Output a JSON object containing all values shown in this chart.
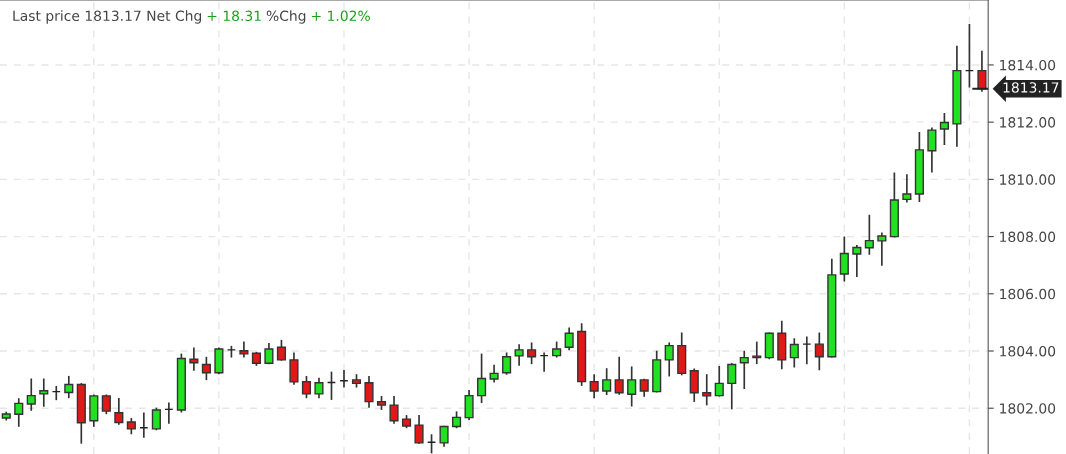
{
  "chart_data": {
    "type": "candlestick",
    "annotations": [
      "Last price 1813.17 Net Chg",
      "+ 18.31",
      "%Chg",
      "+ 1.02%"
    ],
    "categories": [
      null,
      null,
      null,
      null,
      null,
      null,
      null,
      null,
      null,
      null,
      null,
      null,
      null,
      null,
      null,
      null,
      null,
      null,
      null,
      null,
      null,
      null,
      null,
      null,
      null,
      null,
      null,
      null,
      null,
      null,
      null,
      null,
      null,
      null,
      null,
      null,
      null,
      null,
      null,
      null,
      null,
      null,
      null,
      null,
      null,
      null,
      null,
      null,
      null,
      null,
      null,
      null,
      null,
      null,
      null,
      null,
      null,
      null,
      null,
      null,
      null,
      null,
      null,
      null,
      null,
      null,
      null,
      null,
      null,
      null,
      null,
      null,
      null,
      null,
      null,
      null,
      null,
      null,
      null
    ],
    "ohlc": [
      [
        1801.66,
        1801.85,
        1801.6,
        1801.8
      ],
      [
        1801.79,
        1802.32,
        1801.38,
        1802.17
      ],
      [
        1802.15,
        1803.01,
        1801.94,
        1802.44
      ],
      [
        1802.5,
        1803.01,
        1802.08,
        1802.61
      ],
      [
        1802.58,
        1802.75,
        1802.31,
        1802.58
      ],
      [
        1802.55,
        1803.1,
        1802.38,
        1802.83
      ],
      [
        1802.83,
        1802.85,
        1800.79,
        1801.49
      ],
      [
        1801.56,
        1802.45,
        1801.38,
        1802.43
      ],
      [
        1802.43,
        1802.45,
        1801.82,
        1801.9
      ],
      [
        1801.84,
        1802.33,
        1801.45,
        1801.5
      ],
      [
        1801.52,
        1801.63,
        1801.12,
        1801.28
      ],
      [
        1801.32,
        1801.82,
        1801.0,
        1801.32
      ],
      [
        1801.28,
        1801.99,
        1801.26,
        1801.94
      ],
      [
        1801.96,
        1802.17,
        1801.49,
        1801.96
      ],
      [
        1801.94,
        1803.88,
        1801.88,
        1803.74
      ],
      [
        1803.71,
        1804.09,
        1803.34,
        1803.59
      ],
      [
        1803.53,
        1803.77,
        1803.01,
        1803.24
      ],
      [
        1803.24,
        1804.09,
        1803.22,
        1804.07
      ],
      [
        1804.04,
        1804.15,
        1803.8,
        1804.04
      ],
      [
        1804.01,
        1804.3,
        1803.8,
        1803.9
      ],
      [
        1803.92,
        1803.94,
        1803.51,
        1803.57
      ],
      [
        1803.57,
        1804.25,
        1803.57,
        1804.07
      ],
      [
        1804.13,
        1804.36,
        1803.69,
        1803.69
      ],
      [
        1803.69,
        1803.92,
        1802.85,
        1802.92
      ],
      [
        1802.93,
        1803.1,
        1802.38,
        1802.5
      ],
      [
        1802.5,
        1803.04,
        1802.38,
        1802.89
      ],
      [
        1802.9,
        1803.25,
        1802.32,
        1802.9
      ],
      [
        1802.96,
        1803.31,
        1802.75,
        1802.96
      ],
      [
        1802.99,
        1803.16,
        1802.75,
        1802.87
      ],
      [
        1802.89,
        1803.1,
        1802.05,
        1802.23
      ],
      [
        1802.23,
        1802.4,
        1801.97,
        1802.11
      ],
      [
        1802.11,
        1802.4,
        1801.49,
        1801.56
      ],
      [
        1801.62,
        1801.73,
        1801.33,
        1801.38
      ],
      [
        1801.41,
        1801.73,
        1800.79,
        1800.79
      ],
      [
        1800.81,
        1801.06,
        1800.45,
        1800.81
      ],
      [
        1800.79,
        1801.36,
        1800.68,
        1801.36
      ],
      [
        1801.36,
        1801.86,
        1801.33,
        1801.68
      ],
      [
        1801.67,
        1802.61,
        1801.62,
        1802.44
      ],
      [
        1802.44,
        1803.88,
        1802.21,
        1803.04
      ],
      [
        1803.02,
        1803.49,
        1802.93,
        1803.22
      ],
      [
        1803.24,
        1803.92,
        1803.2,
        1803.8
      ],
      [
        1803.83,
        1804.21,
        1803.51,
        1804.04
      ],
      [
        1804.04,
        1804.27,
        1803.57,
        1803.8
      ],
      [
        1803.84,
        1803.92,
        1803.3,
        1803.84
      ],
      [
        1803.84,
        1804.3,
        1803.8,
        1804.07
      ],
      [
        1804.13,
        1804.79,
        1804.06,
        1804.62
      ],
      [
        1804.68,
        1804.94,
        1802.81,
        1802.93
      ],
      [
        1802.93,
        1803.16,
        1802.38,
        1802.6
      ],
      [
        1802.6,
        1803.37,
        1802.49,
        1802.99
      ],
      [
        1802.99,
        1803.77,
        1802.5,
        1802.54
      ],
      [
        1802.49,
        1803.43,
        1802.09,
        1802.99
      ],
      [
        1802.99,
        1803.0,
        1802.43,
        1802.6
      ],
      [
        1802.58,
        1803.98,
        1802.58,
        1803.69
      ],
      [
        1803.69,
        1804.27,
        1803.14,
        1804.19
      ],
      [
        1804.19,
        1804.62,
        1803.18,
        1803.22
      ],
      [
        1803.31,
        1803.36,
        1802.25,
        1802.54
      ],
      [
        1802.54,
        1803.16,
        1802.13,
        1802.43
      ],
      [
        1802.44,
        1803.45,
        1802.44,
        1802.87
      ],
      [
        1802.87,
        1803.55,
        1801.99,
        1803.53
      ],
      [
        1803.59,
        1803.98,
        1802.7,
        1803.77
      ],
      [
        1803.82,
        1804.3,
        1803.57,
        1803.77
      ],
      [
        1803.77,
        1804.62,
        1803.74,
        1804.62
      ],
      [
        1804.62,
        1805.03,
        1803.39,
        1803.69
      ],
      [
        1803.77,
        1804.42,
        1803.45,
        1804.23
      ],
      [
        1804.24,
        1804.48,
        1803.57,
        1804.24
      ],
      [
        1804.24,
        1804.62,
        1803.36,
        1803.8
      ],
      [
        1803.8,
        1807.2,
        1803.8,
        1806.66
      ],
      [
        1806.69,
        1807.97,
        1806.46,
        1807.41
      ],
      [
        1807.39,
        1807.68,
        1806.62,
        1807.62
      ],
      [
        1807.61,
        1808.73,
        1807.39,
        1807.86
      ],
      [
        1807.85,
        1808.11,
        1807.01,
        1808.02
      ],
      [
        1808.0,
        1810.21,
        1808.0,
        1809.28
      ],
      [
        1809.3,
        1810.15,
        1809.22,
        1809.49
      ],
      [
        1809.49,
        1811.63,
        1809.24,
        1811.03
      ],
      [
        1811.0,
        1811.78,
        1810.27,
        1811.72
      ],
      [
        1811.76,
        1812.29,
        1811.23,
        1811.99
      ],
      [
        1811.94,
        1814.64,
        1811.17,
        1813.8
      ],
      [
        1813.8,
        1815.4,
        1813.24,
        1813.8
      ],
      [
        1813.8,
        1814.47,
        1813.09,
        1813.17
      ]
    ],
    "ylim": [
      1800.4,
      1816.27
    ],
    "yticks": [
      {
        "value": 1802,
        "label": "1802.00"
      },
      {
        "value": 1804,
        "label": "1804.00"
      },
      {
        "value": 1806,
        "label": "1806.00"
      },
      {
        "value": 1808,
        "label": "1808.00"
      },
      {
        "value": 1810,
        "label": "1810.00"
      },
      {
        "value": 1812,
        "label": "1812.00"
      },
      {
        "value": 1814,
        "label": "1814.00"
      }
    ],
    "ref_lines": [
      {
        "axis": "y",
        "value": 1813.17,
        "label": "1813.17",
        "color": "#222222"
      }
    ],
    "colors": [
      "#22e022",
      "#22e022",
      "#22e022",
      "#22e022",
      "#222222",
      "#22e022",
      "#e01818",
      "#22e022",
      "#e01818",
      "#e01818",
      "#e01818",
      "#222222",
      "#22e022",
      "#222222",
      "#22e022",
      "#e01818",
      "#e01818",
      "#22e022",
      "#222222",
      "#e01818",
      "#e01818",
      "#22e022",
      "#e01818",
      "#e01818",
      "#e01818",
      "#22e022",
      "#222222",
      "#222222",
      "#e01818",
      "#e01818",
      "#e01818",
      "#e01818",
      "#e01818",
      "#e01818",
      "#222222",
      "#22e022",
      "#22e022",
      "#22e022",
      "#22e022",
      "#22e022",
      "#22e022",
      "#22e022",
      "#e01818",
      "#222222",
      "#22e022",
      "#22e022",
      "#e01818",
      "#e01818",
      "#22e022",
      "#e01818",
      "#22e022",
      "#e01818",
      "#22e022",
      "#22e022",
      "#e01818",
      "#e01818",
      "#e01818",
      "#22e022",
      "#22e022",
      "#22e022",
      "#e01818",
      "#22e022",
      "#e01818",
      "#22e022",
      "#222222",
      "#e01818",
      "#22e022",
      "#22e022",
      "#22e022",
      "#22e022",
      "#22e022",
      "#22e022",
      "#22e022",
      "#22e022",
      "#22e022",
      "#22e022",
      "#22e022",
      "#222222",
      "#e01818"
    ],
    "grid": true
  }
}
